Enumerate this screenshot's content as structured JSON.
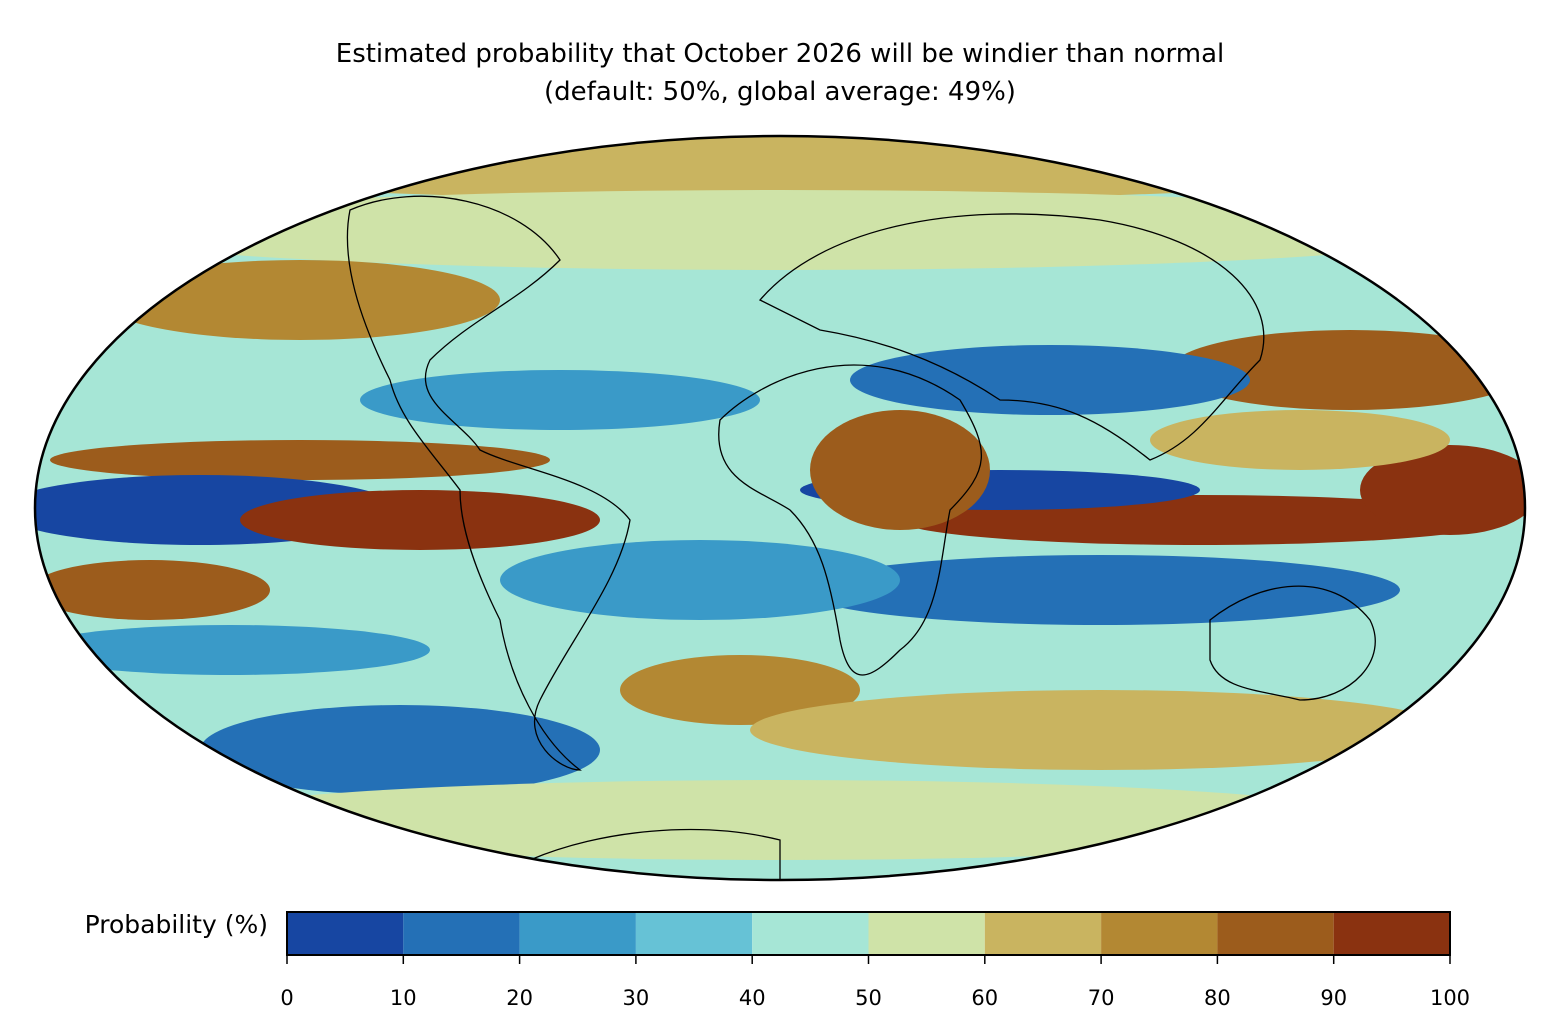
{
  "map": {
    "title": [
      "Estimated probability that October 2026 will be windier than normal",
      "(default: 50%, global average: 49%)"
    ],
    "colorbar": {
      "label": "Probability (%)",
      "range": [
        0,
        100
      ],
      "ticks": [
        0,
        10,
        20,
        30,
        40,
        50,
        60,
        70,
        80,
        90,
        100
      ],
      "colors": [
        "#1746a2",
        "#2470b6",
        "#3a9ac8",
        "#66c2d6",
        "#a6e6d6",
        "#cfe3a8",
        "#c9b460",
        "#b38833",
        "#9c5c1c",
        "#8a3210"
      ]
    }
  }
}
